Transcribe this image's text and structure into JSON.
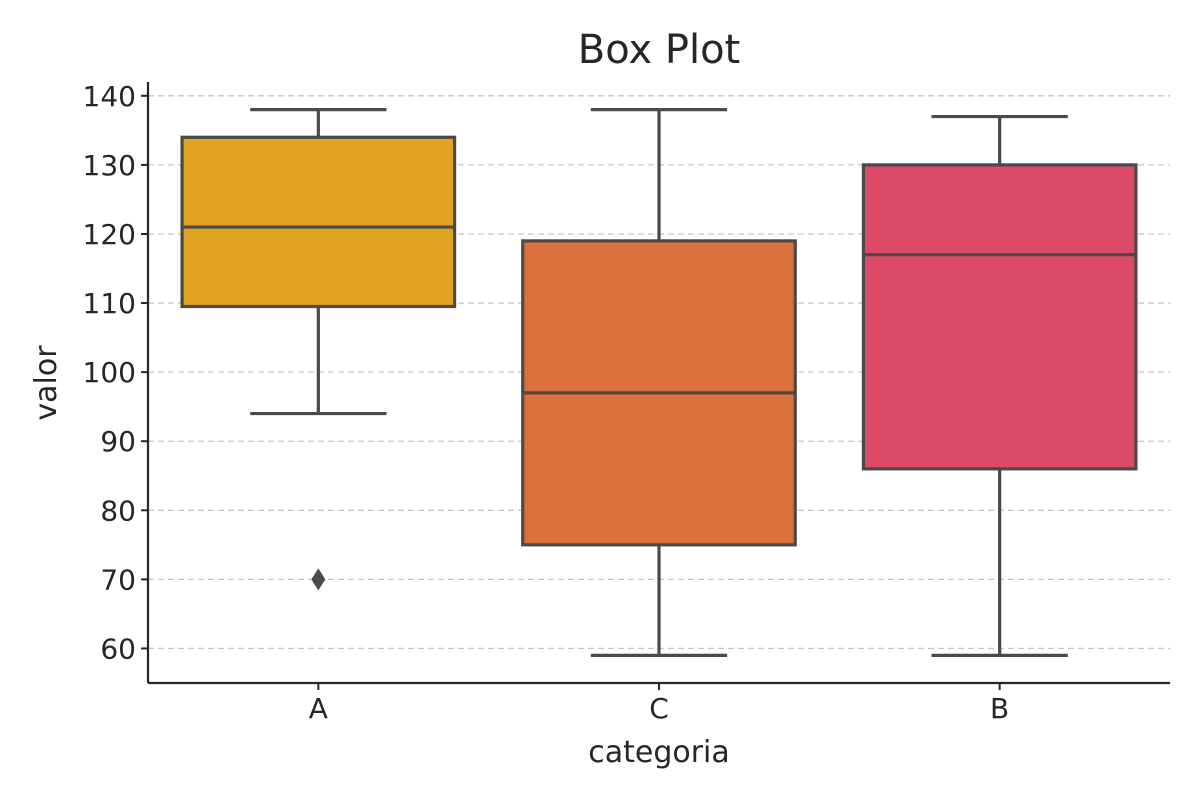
{
  "chart_data": {
    "type": "box",
    "title": "Box Plot",
    "xlabel": "categoria",
    "ylabel": "valor",
    "ylim": [
      55,
      142
    ],
    "yticks": [
      60,
      70,
      80,
      90,
      100,
      110,
      120,
      130,
      140
    ],
    "grid": "horizontal-dashed",
    "categories": [
      "A",
      "C",
      "B"
    ],
    "boxes": [
      {
        "category": "A",
        "whisker_low": 94,
        "q1": 109.5,
        "median": 121,
        "q3": 134,
        "whisker_high": 138,
        "outliers": [
          70
        ],
        "color": "#E1A321"
      },
      {
        "category": "C",
        "whisker_low": 59,
        "q1": 75,
        "median": 97,
        "q3": 119,
        "whisker_high": 138,
        "outliers": [],
        "color": "#DA703C"
      },
      {
        "category": "B",
        "whisker_low": 59,
        "q1": 86,
        "median": 117,
        "q3": 130,
        "whisker_high": 137,
        "outliers": [],
        "color": "#DC4A67"
      }
    ]
  }
}
